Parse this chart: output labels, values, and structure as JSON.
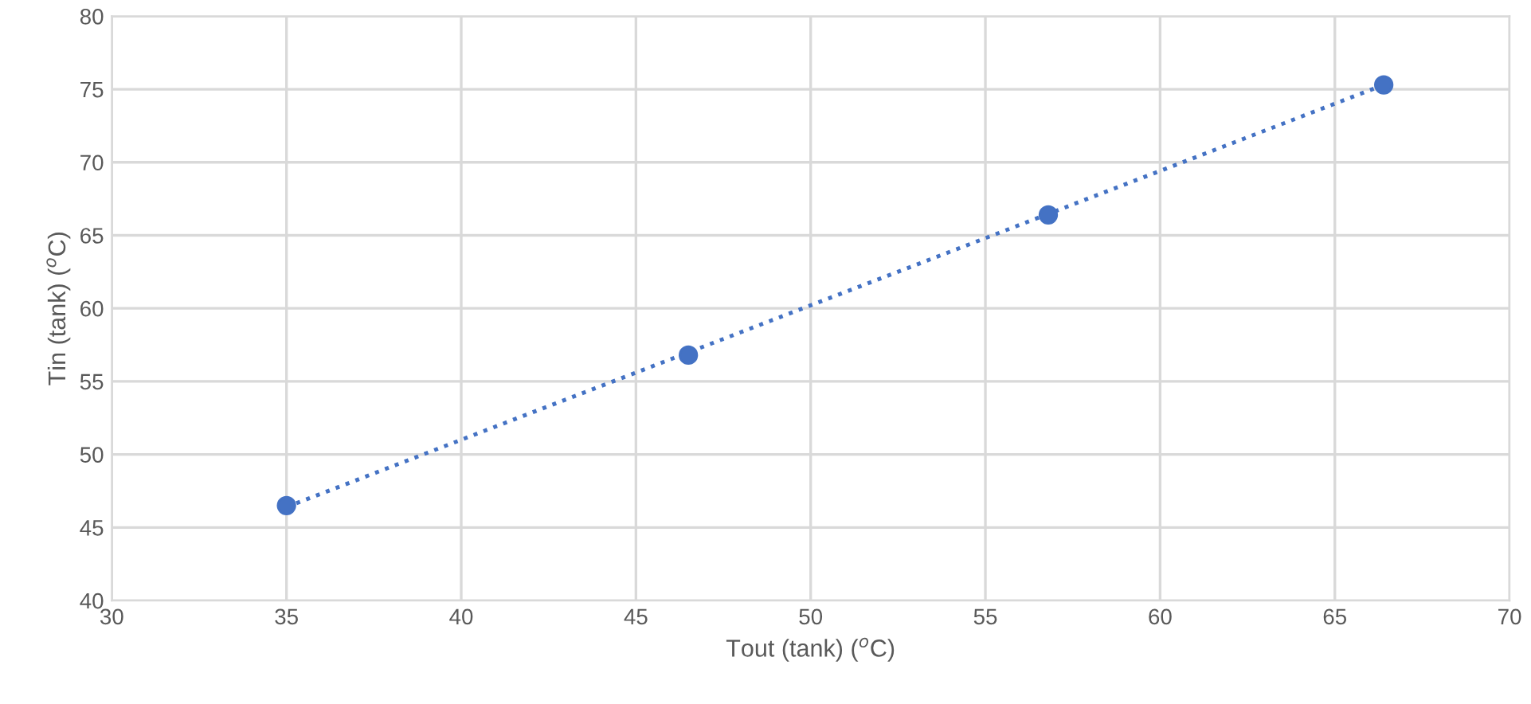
{
  "chart_data": {
    "type": "scatter",
    "xlabel": "Tout (tank) ($^{o}$C)",
    "ylabel": "Tin (tank) ($^{o}$C)",
    "series": [
      {
        "color": "#4472c4",
        "x": [
          35,
          46.5,
          56.8,
          66.4
        ],
        "values": [
          46.5,
          56.8,
          66.4,
          75.3
        ],
        "marker": "circle"
      },
      {
        "type": "line",
        "color": "#4472c4",
        "x": [
          35,
          66.4
        ],
        "values": [
          46.4,
          75.3
        ],
        "line_style": "dotted"
      }
    ],
    "xlim": [
      30,
      70
    ],
    "ylim": [
      40,
      80
    ],
    "xticks": [
      30,
      35,
      40,
      45,
      50,
      55,
      60,
      65,
      70
    ],
    "yticks": [
      40,
      45,
      50,
      55,
      60,
      65,
      70,
      75,
      80
    ],
    "grid": true
  }
}
